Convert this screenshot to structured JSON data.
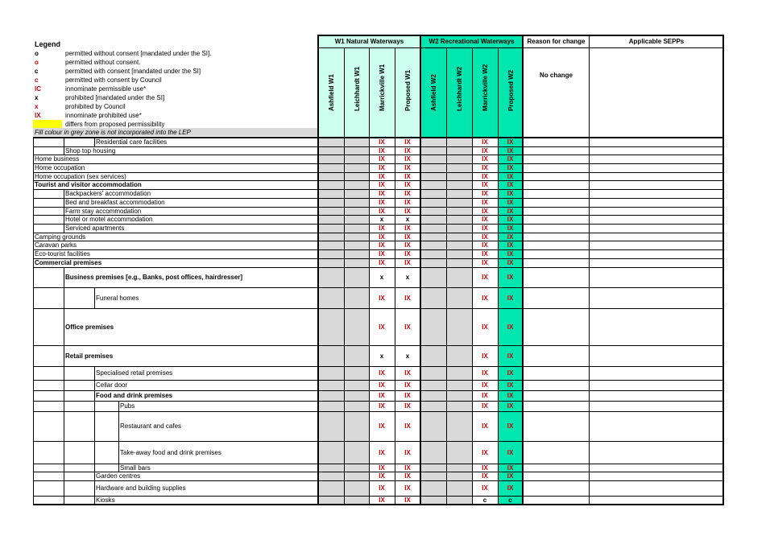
{
  "legend": {
    "title": "Legend",
    "items": [
      {
        "symbol": "o",
        "color": "#000000",
        "desc": "permitted without consent [mandated under the SI]."
      },
      {
        "symbol": "o",
        "color": "#cc0000",
        "desc": "permitted without consent."
      },
      {
        "symbol": "c",
        "color": "#000000",
        "desc": "permitted with consent [mandated under the SI]"
      },
      {
        "symbol": "c",
        "color": "#cc0000",
        "desc": "permitted with consent by Council"
      },
      {
        "symbol": "IC",
        "color": "#cc0000",
        "desc": "innominate permissible use*"
      },
      {
        "symbol": "x",
        "color": "#000000",
        "desc": "prohibited [mandated under the SI]"
      },
      {
        "symbol": "x",
        "color": "#cc0000",
        "desc": "prohibited by Council"
      },
      {
        "symbol": "IX",
        "color": "#cc0000",
        "desc": "innominate prohibited use*"
      },
      {
        "symbol": "",
        "color": "#ffff00",
        "desc": "differs from proposed permissibility"
      }
    ],
    "grey_note": "Fill colour in grey  zone is not incorporated into the LEP"
  },
  "headers": {
    "w1": "W1 Natural Waterways",
    "w2": "W2 Recreational Waterways",
    "reason": "Reason for change",
    "sepps": "Applicable SEPPs",
    "no_change": "No change",
    "cols": [
      "Ashfield W1",
      "Leichhardt W1",
      "Marrickville W1",
      "Proposed W1",
      "Ashfield W2",
      "Leichhardt W2",
      "Marrickville W2",
      "Proposed W2"
    ]
  },
  "colors": {
    "w1_header": "#ccffee",
    "w2_header": "#00e6b0",
    "w2_proposed": "#00e6b0",
    "grey": "#d9d9d9",
    "legend_grey": "#d9d9d9",
    "red": "#cc0000"
  },
  "rows": [
    {
      "label": "Residential care facilities",
      "indent": 2,
      "bold": false,
      "vals": [
        "",
        "",
        "IX",
        "IX",
        "",
        "",
        "IX",
        "IX"
      ],
      "red": [
        0,
        0,
        1,
        1,
        0,
        0,
        1,
        1
      ]
    },
    {
      "label": "Shop top housing",
      "indent": 1,
      "bold": false,
      "vals": [
        "",
        "",
        "IX",
        "IX",
        "",
        "",
        "IX",
        "IX"
      ],
      "red": [
        0,
        0,
        1,
        1,
        0,
        0,
        1,
        1
      ]
    },
    {
      "label": "Home business",
      "indent": 0,
      "bold": false,
      "vals": [
        "",
        "",
        "IX",
        "IX",
        "",
        "",
        "IX",
        "IX"
      ],
      "red": [
        0,
        0,
        1,
        1,
        0,
        0,
        1,
        1
      ]
    },
    {
      "label": "Home occupation",
      "indent": 0,
      "bold": false,
      "vals": [
        "",
        "",
        "IX",
        "IX",
        "",
        "",
        "IX",
        "IX"
      ],
      "red": [
        0,
        0,
        1,
        1,
        0,
        0,
        1,
        1
      ]
    },
    {
      "label": "Home occupation (sex services)",
      "indent": 0,
      "bold": false,
      "vals": [
        "",
        "",
        "IX",
        "IX",
        "",
        "",
        "IX",
        "IX"
      ],
      "red": [
        0,
        0,
        1,
        1,
        0,
        0,
        1,
        1
      ]
    },
    {
      "label": "Tourist and visitor accommodation",
      "indent": 0,
      "bold": true,
      "vals": [
        "",
        "",
        "IX",
        "IX",
        "",
        "",
        "IX",
        "IX"
      ],
      "red": [
        0,
        0,
        1,
        1,
        0,
        0,
        1,
        1
      ]
    },
    {
      "label": "Backpackers' accommodation",
      "indent": 1,
      "bold": false,
      "vals": [
        "",
        "",
        "IX",
        "IX",
        "",
        "",
        "IX",
        "IX"
      ],
      "red": [
        0,
        0,
        1,
        1,
        0,
        0,
        1,
        1
      ]
    },
    {
      "label": "Bed and breakfast accommodation",
      "indent": 1,
      "bold": false,
      "vals": [
        "",
        "",
        "IX",
        "IX",
        "",
        "",
        "IX",
        "IX"
      ],
      "red": [
        0,
        0,
        1,
        1,
        0,
        0,
        1,
        1
      ]
    },
    {
      "label": "Farm stay accommodation",
      "indent": 1,
      "bold": false,
      "vals": [
        "",
        "",
        "IX",
        "IX",
        "",
        "",
        "IX",
        "IX"
      ],
      "red": [
        0,
        0,
        1,
        1,
        0,
        0,
        1,
        1
      ]
    },
    {
      "label": "Hotel or motel accommodation",
      "indent": 1,
      "bold": false,
      "vals": [
        "",
        "",
        "x",
        "x",
        "",
        "",
        "IX",
        "IX"
      ],
      "red": [
        0,
        0,
        0,
        0,
        0,
        0,
        1,
        1
      ]
    },
    {
      "label": "Serviced apartments",
      "indent": 1,
      "bold": false,
      "vals": [
        "",
        "",
        "IX",
        "IX",
        "",
        "",
        "IX",
        "IX"
      ],
      "red": [
        0,
        0,
        1,
        1,
        0,
        0,
        1,
        1
      ]
    },
    {
      "label": "Camping grounds",
      "indent": 0,
      "bold": false,
      "vals": [
        "",
        "",
        "IX",
        "IX",
        "",
        "",
        "IX",
        "IX"
      ],
      "red": [
        0,
        0,
        1,
        1,
        0,
        0,
        1,
        1
      ]
    },
    {
      "label": "Caravan parks",
      "indent": 0,
      "bold": false,
      "vals": [
        "",
        "",
        "IX",
        "IX",
        "",
        "",
        "IX",
        "IX"
      ],
      "red": [
        0,
        0,
        1,
        1,
        0,
        0,
        1,
        1
      ]
    },
    {
      "label": "Eco-tourist facilities",
      "indent": 0,
      "bold": false,
      "vals": [
        "",
        "",
        "IX",
        "IX",
        "",
        "",
        "IX",
        "IX"
      ],
      "red": [
        0,
        0,
        1,
        1,
        0,
        0,
        1,
        1
      ]
    },
    {
      "label": "Commercial premises",
      "indent": 0,
      "bold": true,
      "vals": [
        "",
        "",
        "IX",
        "IX",
        "",
        "",
        "IX",
        "IX"
      ],
      "red": [
        0,
        0,
        1,
        1,
        0,
        0,
        1,
        1
      ]
    },
    {
      "label": "Business premises [e.g., Banks, post offices, hairdresser]",
      "indent": 1,
      "bold": true,
      "vals": [
        "",
        "",
        "x",
        "x",
        "",
        "",
        "IX",
        "IX"
      ],
      "red": [
        0,
        0,
        0,
        0,
        0,
        0,
        1,
        1
      ]
    },
    {
      "label": "Funeral homes",
      "indent": 2,
      "bold": false,
      "vals": [
        "",
        "",
        "IX",
        "IX",
        "",
        "",
        "IX",
        "IX"
      ],
      "red": [
        0,
        0,
        1,
        1,
        0,
        0,
        1,
        1
      ]
    },
    {
      "label": "Office premises",
      "indent": 1,
      "bold": true,
      "vals": [
        "",
        "",
        "IX",
        "IX",
        "",
        "",
        "IX",
        "IX"
      ],
      "red": [
        0,
        0,
        1,
        1,
        0,
        0,
        1,
        1
      ]
    },
    {
      "label": "Retail premises",
      "indent": 1,
      "bold": true,
      "vals": [
        "",
        "",
        "x",
        "x",
        "",
        "",
        "IX",
        "IX"
      ],
      "red": [
        0,
        0,
        0,
        0,
        0,
        0,
        1,
        1
      ]
    },
    {
      "label": "Specialised retail premises",
      "indent": 2,
      "bold": false,
      "vals": [
        "",
        "",
        "IX",
        "IX",
        "",
        "",
        "IX",
        "IX"
      ],
      "red": [
        0,
        0,
        1,
        1,
        0,
        0,
        1,
        1
      ]
    },
    {
      "label": "Cellar door",
      "indent": 2,
      "bold": false,
      "vals": [
        "",
        "",
        "IX",
        "IX",
        "",
        "",
        "IX",
        "IX"
      ],
      "red": [
        0,
        0,
        1,
        1,
        0,
        0,
        1,
        1
      ]
    },
    {
      "label": "Food and drink premises",
      "indent": 2,
      "bold": true,
      "vals": [
        "",
        "",
        "IX",
        "IX",
        "",
        "",
        "IX",
        "IX"
      ],
      "red": [
        0,
        0,
        1,
        1,
        0,
        0,
        1,
        1
      ]
    },
    {
      "label": "Pubs",
      "indent": 3,
      "bold": false,
      "vals": [
        "",
        "",
        "IX",
        "IX",
        "",
        "",
        "IX",
        "IX"
      ],
      "red": [
        0,
        0,
        1,
        1,
        0,
        0,
        1,
        1
      ]
    },
    {
      "label": "Restaurant and cafes",
      "indent": 3,
      "bold": false,
      "vals": [
        "",
        "",
        "IX",
        "IX",
        "",
        "",
        "IX",
        "IX"
      ],
      "red": [
        0,
        0,
        1,
        1,
        0,
        0,
        1,
        1
      ]
    },
    {
      "label": "Take-away food and drink premises",
      "indent": 3,
      "bold": false,
      "vals": [
        "",
        "",
        "IX",
        "IX",
        "",
        "",
        "IX",
        "IX"
      ],
      "red": [
        0,
        0,
        1,
        1,
        0,
        0,
        1,
        1
      ]
    },
    {
      "label": "Small bars",
      "indent": 3,
      "bold": false,
      "vals": [
        "",
        "",
        "IX",
        "IX",
        "",
        "",
        "IX",
        "IX"
      ],
      "red": [
        0,
        0,
        1,
        1,
        0,
        0,
        1,
        1
      ]
    },
    {
      "label": "Garden centres",
      "indent": 2,
      "bold": false,
      "vals": [
        "",
        "",
        "IX",
        "IX",
        "",
        "",
        "IX",
        "IX"
      ],
      "red": [
        0,
        0,
        1,
        1,
        0,
        0,
        1,
        1
      ]
    },
    {
      "label": "Hardware and building supplies",
      "indent": 2,
      "bold": false,
      "vals": [
        "",
        "",
        "IX",
        "IX",
        "",
        "",
        "IX",
        "IX"
      ],
      "red": [
        0,
        0,
        1,
        1,
        0,
        0,
        1,
        1
      ]
    },
    {
      "label": "Kiosks",
      "indent": 2,
      "bold": false,
      "vals": [
        "",
        "",
        "IX",
        "IX",
        "",
        "",
        "c",
        "c"
      ],
      "red": [
        0,
        0,
        1,
        1,
        0,
        0,
        0,
        0
      ]
    }
  ]
}
